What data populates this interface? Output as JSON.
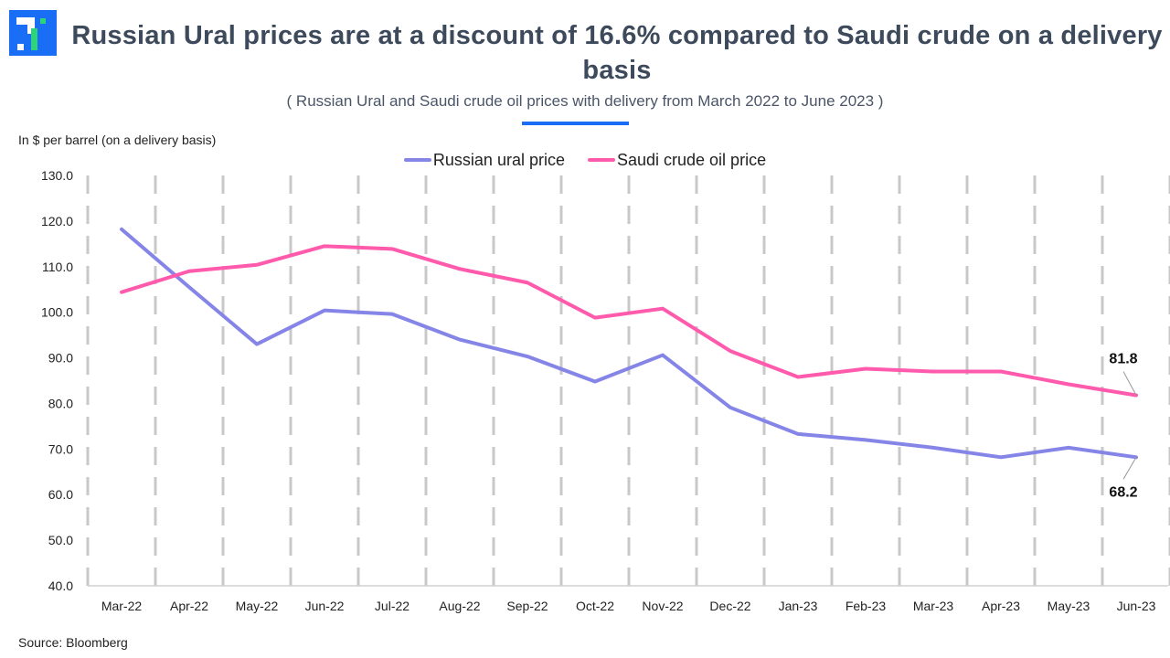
{
  "header": {
    "logo_icon": "brand-logo-icon",
    "title": "Russian Ural prices are at a discount of 16.6% compared to Saudi crude on a delivery basis",
    "subtitle": "( Russian Ural and Saudi crude oil prices with delivery from March 2022 to June 2023 )",
    "accent_color": "#1a6ef5"
  },
  "footer": {
    "source": "Source: Bloomberg"
  },
  "chart_data": {
    "type": "line",
    "title": "Russian Ural prices are at a discount of 16.6% compared to Saudi crude on a delivery basis",
    "subtitle": "( Russian Ural and Saudi crude oil prices with delivery from March 2022 to June 2023 )",
    "xlabel": "",
    "ylabel": "In $ per barrel  (on a delivery basis)",
    "ylim": [
      40,
      130
    ],
    "yticks": [
      "40.0",
      "50.0",
      "60.0",
      "70.0",
      "80.0",
      "90.0",
      "100.0",
      "110.0",
      "120.0",
      "130.0"
    ],
    "grid": "vertical-dashed",
    "legend_position": "top-center",
    "categories": [
      "Mar-22",
      "Apr-22",
      "May-22",
      "Jun-22",
      "Jul-22",
      "Aug-22",
      "Sep-22",
      "Oct-22",
      "Nov-22",
      "Dec-22",
      "Jan-23",
      "Feb-23",
      "Mar-23",
      "Apr-23",
      "May-23",
      "Jun-23"
    ],
    "series": [
      {
        "name": "Russian ural price",
        "color": "#8585e8",
        "values": [
          118.2,
          105.5,
          93.0,
          100.4,
          99.6,
          94.0,
          90.3,
          84.8,
          90.6,
          79.1,
          73.3,
          72.0,
          70.3,
          68.2,
          70.3,
          68.2
        ],
        "end_label": "68.2"
      },
      {
        "name": "Saudi crude oil price",
        "color": "#ff5aac",
        "values": [
          104.4,
          109.0,
          110.4,
          114.5,
          113.9,
          109.5,
          106.5,
          98.8,
          100.8,
          91.5,
          85.8,
          87.6,
          87.0,
          87.0,
          84.2,
          81.8
        ],
        "end_label": "81.8"
      }
    ]
  }
}
